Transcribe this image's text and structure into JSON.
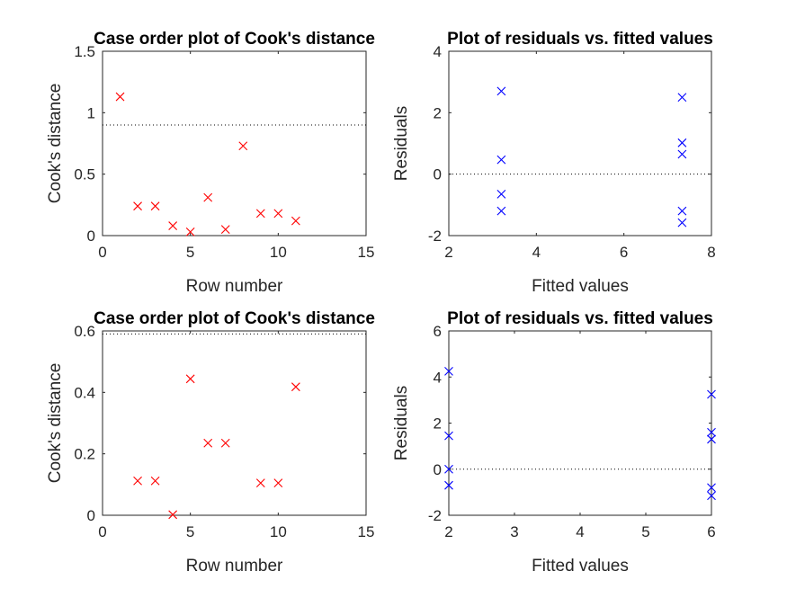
{
  "colors": {
    "cooks_marker": "#ff0000",
    "residual_marker": "#0000ff",
    "reference_line": "#000000"
  },
  "chart_data": [
    {
      "type": "scatter",
      "marker": "x",
      "title": "Case order plot of Cook's distance",
      "xlabel": "Row number",
      "ylabel": "Cook's distance",
      "xlim": [
        0,
        15
      ],
      "ylim": [
        0,
        1.5
      ],
      "xticks": [
        "0",
        "5",
        "10",
        "15"
      ],
      "yticks": [
        "0",
        "0.5",
        "1",
        "1.5"
      ],
      "reference_y": 0.9,
      "points": [
        {
          "x": 1,
          "y": 1.13
        },
        {
          "x": 2,
          "y": 0.24
        },
        {
          "x": 3,
          "y": 0.24
        },
        {
          "x": 4,
          "y": 0.08
        },
        {
          "x": 5,
          "y": 0.03
        },
        {
          "x": 6,
          "y": 0.31
        },
        {
          "x": 7,
          "y": 0.05
        },
        {
          "x": 8,
          "y": 0.73
        },
        {
          "x": 9,
          "y": 0.18
        },
        {
          "x": 10,
          "y": 0.18
        },
        {
          "x": 11,
          "y": 0.12
        }
      ]
    },
    {
      "type": "scatter",
      "marker": "x",
      "title": "Plot of residuals vs. fitted values",
      "xlabel": "Fitted values",
      "ylabel": "Residuals",
      "xlim": [
        2,
        8
      ],
      "ylim": [
        -2,
        4
      ],
      "xticks": [
        "2",
        "4",
        "6",
        "8"
      ],
      "yticks": [
        "-2",
        "0",
        "2",
        "4"
      ],
      "reference_y": 0,
      "points": [
        {
          "x": 3.2,
          "y": 2.7
        },
        {
          "x": 3.2,
          "y": 0.47
        },
        {
          "x": 3.2,
          "y": -0.65
        },
        {
          "x": 3.2,
          "y": -1.2
        },
        {
          "x": 7.33,
          "y": 2.5
        },
        {
          "x": 7.33,
          "y": 1.02
        },
        {
          "x": 7.33,
          "y": 0.65
        },
        {
          "x": 7.33,
          "y": -1.2
        },
        {
          "x": 7.33,
          "y": -1.58
        }
      ]
    },
    {
      "type": "scatter",
      "marker": "x",
      "title": "Case order plot of Cook's distance",
      "xlabel": "Row number",
      "ylabel": "Cook's distance",
      "xlim": [
        0,
        15
      ],
      "ylim": [
        0,
        0.6
      ],
      "xticks": [
        "0",
        "5",
        "10",
        "15"
      ],
      "yticks": [
        "0",
        "0.2",
        "0.4",
        "0.6"
      ],
      "reference_y": 0.59,
      "points": [
        {
          "x": 2,
          "y": 0.112
        },
        {
          "x": 3,
          "y": 0.112
        },
        {
          "x": 4,
          "y": 0.002
        },
        {
          "x": 5,
          "y": 0.444
        },
        {
          "x": 6,
          "y": 0.235
        },
        {
          "x": 7,
          "y": 0.235
        },
        {
          "x": 9,
          "y": 0.105
        },
        {
          "x": 10,
          "y": 0.105
        },
        {
          "x": 11,
          "y": 0.418
        }
      ]
    },
    {
      "type": "scatter",
      "marker": "x",
      "title": "Plot of residuals vs. fitted values",
      "xlabel": "Fitted values",
      "ylabel": "Residuals",
      "xlim": [
        2,
        6
      ],
      "ylim": [
        -2,
        6
      ],
      "xticks": [
        "2",
        "3",
        "4",
        "5",
        "6"
      ],
      "yticks": [
        "-2",
        "0",
        "2",
        "4",
        "6"
      ],
      "reference_y": 0,
      "points": [
        {
          "x": 2,
          "y": 4.25
        },
        {
          "x": 2,
          "y": 1.45
        },
        {
          "x": 2,
          "y": 0.0
        },
        {
          "x": 2,
          "y": -0.7
        },
        {
          "x": 6,
          "y": 3.25
        },
        {
          "x": 6,
          "y": 1.6
        },
        {
          "x": 6,
          "y": 1.3
        },
        {
          "x": 6,
          "y": -0.8
        },
        {
          "x": 6,
          "y": -1.15
        }
      ]
    }
  ]
}
